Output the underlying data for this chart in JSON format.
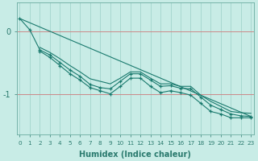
{
  "title": "",
  "xlabel": "Humidex (Indice chaleur)",
  "ylabel": "",
  "bg_color": "#c8ece6",
  "line_color": "#1a7a6e",
  "grid_color": "#a8d8d0",
  "red_line_color": "#cc8888",
  "tick_color": "#2a7a6e",
  "xlim": [
    -0.3,
    23.3
  ],
  "ylim": [
    -1.65,
    0.45
  ],
  "yticks": [
    0,
    -1
  ],
  "xticks": [
    0,
    1,
    2,
    3,
    4,
    5,
    6,
    7,
    8,
    9,
    10,
    11,
    12,
    13,
    14,
    15,
    16,
    17,
    18,
    19,
    20,
    21,
    22,
    23
  ],
  "line1_x": [
    0,
    1,
    2,
    3,
    4,
    5,
    6,
    7,
    8,
    9,
    10,
    11,
    12,
    13,
    14,
    15,
    16,
    17,
    18,
    19,
    20,
    21,
    22,
    23
  ],
  "line1_y": [
    0.2,
    0.02,
    -0.3,
    -0.38,
    -0.5,
    -0.62,
    -0.72,
    -0.85,
    -0.9,
    -0.92,
    -0.8,
    -0.68,
    -0.68,
    -0.78,
    -0.88,
    -0.87,
    -0.91,
    -0.92,
    -1.05,
    -1.18,
    -1.25,
    -1.32,
    -1.35,
    -1.36
  ],
  "line2_x": [
    2,
    3,
    4,
    5,
    6,
    7,
    8,
    9,
    10,
    11,
    12,
    13,
    14,
    15,
    16,
    17,
    18,
    19,
    20,
    21,
    22,
    23
  ],
  "line2_y": [
    -0.32,
    -0.42,
    -0.55,
    -0.68,
    -0.78,
    -0.9,
    -0.95,
    -1.0,
    -0.88,
    -0.75,
    -0.75,
    -0.88,
    -0.98,
    -0.95,
    -0.98,
    -1.02,
    -1.15,
    -1.28,
    -1.32,
    -1.38,
    -1.38,
    -1.38
  ],
  "line3_x": [
    2,
    3,
    4,
    5,
    6,
    7,
    8,
    9,
    10,
    11,
    12,
    13,
    14,
    15,
    16,
    17,
    18,
    19,
    20,
    21,
    22,
    23
  ],
  "line3_y": [
    -0.26,
    -0.34,
    -0.44,
    -0.55,
    -0.65,
    -0.76,
    -0.8,
    -0.84,
    -0.75,
    -0.65,
    -0.65,
    -0.75,
    -0.84,
    -0.84,
    -0.88,
    -0.88,
    -1.02,
    -1.12,
    -1.2,
    -1.28,
    -1.3,
    -1.31
  ],
  "line4_x": [
    0,
    23
  ],
  "line4_y": [
    0.2,
    -1.36
  ]
}
